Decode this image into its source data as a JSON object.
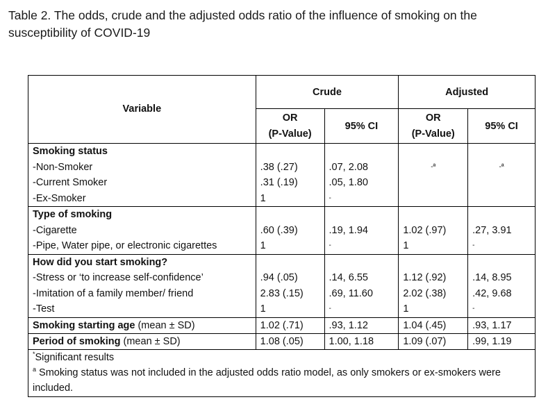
{
  "caption": "Table 2. The odds, crude and the adjusted odds ratio of the influence of smoking on the susceptibility of COVID-19",
  "header": {
    "variable": "Variable",
    "crude": "Crude",
    "adjusted": "Adjusted",
    "or": "OR",
    "pvalue": "(P-Value)",
    "ci": "95% CI"
  },
  "groups": [
    {
      "title": "Smoking status",
      "rows": [
        {
          "label": "-Non-Smoker",
          "c_or": ".38 (.27)",
          "c_ci": ".07, 2.08",
          "a_or": "-ª",
          "a_ci": "-ª"
        },
        {
          "label": "-Current Smoker",
          "c_or": ".31 (.19)",
          "c_ci": ".05, 1.80",
          "a_or": "",
          "a_ci": ""
        },
        {
          "label": "-Ex-Smoker",
          "c_or": "1",
          "c_ci": "-",
          "a_or": "",
          "a_ci": ""
        }
      ]
    },
    {
      "title": "Type of smoking",
      "rows": [
        {
          "label": "-Cigarette",
          "c_or": ".60 (.39)",
          "c_ci": ".19, 1.94",
          "a_or": "1.02 (.97)",
          "a_ci": ".27, 3.91"
        },
        {
          "label": "-Pipe, Water pipe, or electronic cigarettes",
          "c_or": "1",
          "c_ci": "-",
          "a_or": "1",
          "a_ci": "-"
        }
      ]
    },
    {
      "title": "How did you start smoking?",
      "rows": [
        {
          "label": "-Stress or ‘to increase self-confidence’",
          "c_or": ".94 (.05)",
          "c_ci": ".14, 6.55",
          "a_or": "1.12 (.92)",
          "a_ci": ".14, 8.95"
        },
        {
          "label": "-Imitation of a family member/ friend",
          "c_or": "2.83 (.15)",
          "c_ci": ".69, 11.60",
          "a_or": "2.02 (.38)",
          "a_ci": ".42, 9.68"
        },
        {
          "label": "-Test",
          "c_or": "1",
          "c_ci": "-",
          "a_or": "1",
          "a_ci": "-"
        }
      ]
    }
  ],
  "summary_rows": [
    {
      "label_bold": "Smoking starting age",
      "label_rest": " (mean ± SD)",
      "c_or": "1.02 (.71)",
      "c_ci": ".93, 1.12",
      "a_or": "1.04 (.45)",
      "a_ci": ".93, 1.17"
    },
    {
      "label_bold": "Period of smoking",
      "label_rest": " (mean ± SD)",
      "c_or": "1.08 (.05)",
      "c_ci": "1.00, 1.18",
      "a_or": "1.09 (.07)",
      "a_ci": ".99, 1.19"
    }
  ],
  "footnotes": {
    "sig_mark": "*",
    "sig": "Significant results",
    "a_mark": "a",
    "a": "Smoking status was not included in the adjusted odds ratio model, as only smokers or ex-smokers were included."
  }
}
